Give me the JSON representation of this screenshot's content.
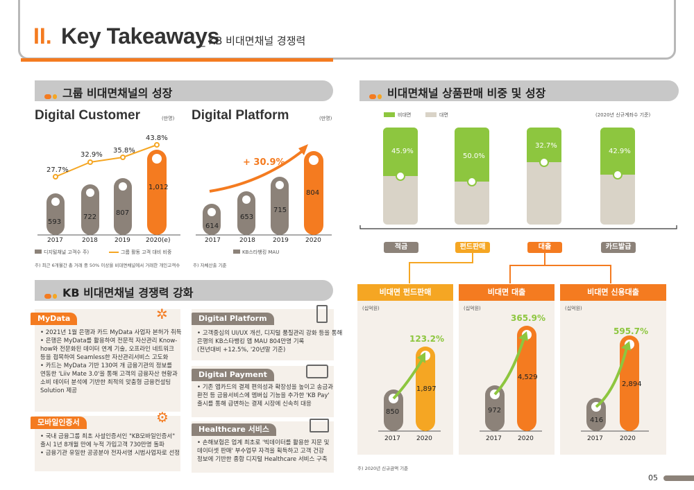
{
  "header": {
    "num": "II.",
    "title": "Key Takeaways",
    "subtitle": "_ KB 비대면채널 경쟁력"
  },
  "sections": {
    "growth": "그룹 비대면채널의 성장",
    "share": "비대면채널 상품판매 비중 및 성장",
    "strength": "KB 비대면채널 경쟁력 강화"
  },
  "digital_customer": {
    "title": "Digital Customer",
    "unit": "(만명)",
    "years": [
      "2017",
      "2018",
      "2019",
      "2020(e)"
    ],
    "values": [
      "593",
      "722",
      "807",
      "1,012"
    ],
    "pcts": [
      "27.7%",
      "32.9%",
      "35.8%",
      "43.8%"
    ],
    "legend_bar": "디지털채널 고객수 주)",
    "legend_line": "그룹 활동 고객 대비 비중",
    "note": "주) 최근 6개월간 총 거래 중 50% 이상을 비대면채널에서 거래한 개인고객수"
  },
  "digital_platform": {
    "title": "Digital Platform",
    "unit": "(만명)",
    "years": [
      "2017",
      "2018",
      "2019",
      "2020"
    ],
    "values": [
      "614",
      "653",
      "715",
      "804"
    ],
    "growth": "+ 30.9%",
    "legend": "KB스타뱅킹 MAU",
    "note": "주) 자체산출 기준"
  },
  "share_chart": {
    "legend_a": "비대면",
    "legend_b": "대면",
    "note": "(2020년 신규계좌수 기준)",
    "categories": [
      "적금",
      "펀드판매",
      "대출",
      "카드발급"
    ],
    "pcts": [
      "45.9%",
      "50.0%",
      "32.7%",
      "42.9%"
    ]
  },
  "panels": [
    {
      "title": "비대면 펀드판매",
      "unit": "(십억원)",
      "v2017": "850",
      "v2020": "1,897",
      "growth": "123.2%"
    },
    {
      "title": "비대면 대출",
      "unit": "(십억원)",
      "v2017": "972",
      "v2020": "4,529",
      "growth": "365.9%"
    },
    {
      "title": "비대면 신용대출",
      "unit": "(십억원)",
      "v2017": "416",
      "v2020": "2,894",
      "growth": "595.7%"
    }
  ],
  "panel_years": [
    "2017",
    "2020"
  ],
  "panel_note": "주) 2020년 신규금액 기준",
  "cards": {
    "mydata": {
      "tag": "MyData",
      "lines": [
        "• 2021년 1월 은행과 카드 MyData 사업자 본허가 취득",
        "• 은행은 MyData를 활용하여 전문적 자산관리 Know-",
        "  how와 전문화된 데이터 연계 기술, 오프라인 네트워크",
        "  등을 접목하여 Seamless한 자산관리서비스 고도화",
        "• 카드는 MyData 기반 130여 개 금융기관의 정보를",
        "  연동한 'Liiv Mate 3.0'을 통해 고객의 금융자산 현황과",
        "  소비 데이터 분석에 기반한 최적의 맞춤형 금융컨설팅",
        "  Solution 제공"
      ]
    },
    "cert": {
      "tag": "모바일인증서",
      "lines": [
        "• 국내 금융그룹 최초 사설인증서인 \"KB모바일인증서\"",
        "  출시 1년 8개월 만에 누적 가입고객 730만명 돌파",
        "• 금융기관 유일한 공공분야 전자서명 시범사업자로 선정"
      ]
    },
    "platform": {
      "tag": "Digital Platform",
      "lines": [
        "• 고객중심의 UI/UX 개선, 디지털 품질관리 강화 등을 통해",
        "  은행의 KB스타뱅킹 앱 MAU 804만명 기록",
        "  (전년대비 +12.5%, '20년말 기준)"
      ]
    },
    "payment": {
      "tag": "Digital Payment",
      "lines": [
        "• 기존 앱카드의 결제 편의성과 확장성을 높이고 송금과",
        "  환전 등 금융서비스에 멤버십 기능을 추가한 'KB Pay'",
        "  출시를 통해 급변하는 결제 시장에 신속히 대응"
      ]
    },
    "health": {
      "tag": "Healthcare 서비스",
      "lines": [
        "• 손해보험은 업계 최초로 '빅데이터를 활용한 지문 및",
        "  데이터셋 판매' 부수업무 자격을 획득하고 고객 건강",
        "  정보에 기반한 종합 디지털 Healthcare 서비스 구축"
      ]
    }
  },
  "page_number": "05",
  "colors": {
    "orange": "#f47b20",
    "yellow": "#f5a623",
    "gray": "#8c8279",
    "green": "#8dc63f",
    "beige": "#d9d3c7"
  }
}
